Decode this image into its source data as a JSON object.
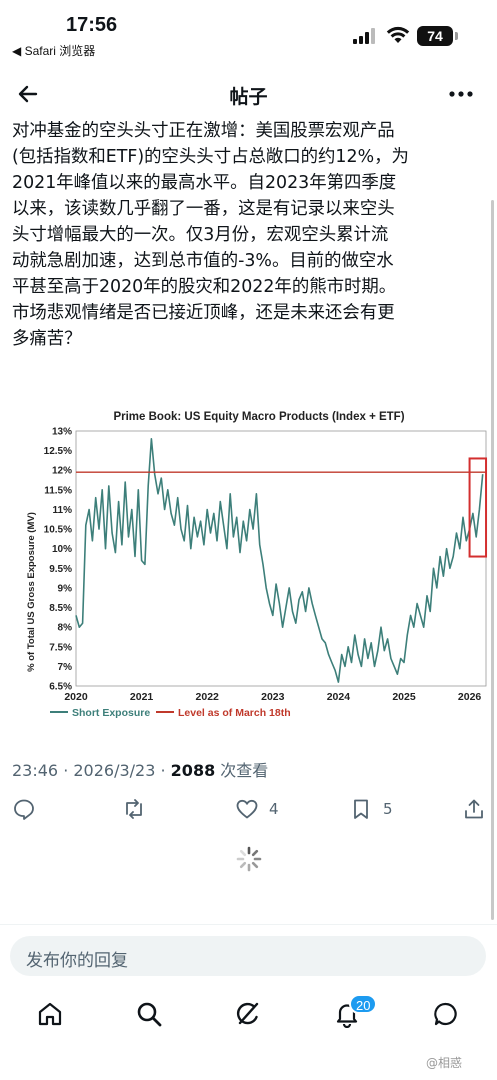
{
  "status_bar": {
    "time": "17:56",
    "back_app": "◀ Safari 浏览器",
    "battery": "74"
  },
  "header": {
    "title": "帖子",
    "back_icon": "arrow-left-icon",
    "more_icon": "more-icon"
  },
  "post": {
    "text": "对冲基金的空头头寸正在激增：美国股票宏观产品\n(包括指数和ETF)的空头头寸占总敞口的约12%，为\n2021年峰值以来的最高水平。自2023年第四季度\n以来，该读数几乎翻了一番，这是有记录以来空头\n头寸增幅最大的一次。仅3月份，宏观空头累计流\n动就急剧加速，达到总市值的-3%。目前的做空水\n平甚至高于2020年的股灾和2022年的熊市时期。\n市场悲观情绪是否已接近顶峰，还是未来还会有更\n多痛苦？",
    "time": "23:46 · 2026/3/23 · ",
    "views": "2088",
    "views_suffix": " 次查看"
  },
  "chart_data": {
    "type": "line",
    "title": "Prime Book: US Equity Macro Products (Index + ETF)",
    "ylabel": "% of Total US Gross Exposure (MV)",
    "xlabel": "",
    "xlim": [
      2020,
      2026.25
    ],
    "ylim": [
      6.5,
      13
    ],
    "x_ticks": [
      "2020",
      "2021",
      "2022",
      "2023",
      "2024",
      "2025",
      "2026"
    ],
    "y_ticks": [
      "6.5%",
      "7%",
      "7.5%",
      "8%",
      "8.5%",
      "9%",
      "9.5%",
      "10%",
      "10.5%",
      "11%",
      "11.5%",
      "12%",
      "12.5%",
      "13%"
    ],
    "grid": false,
    "legend_position": "bottom-left",
    "reference_line": {
      "name": "Level as of March 18th",
      "value": 11.95,
      "color": "#c0392b"
    },
    "series": [
      {
        "name": "Short Exposure",
        "color": "#3d7f7a",
        "x": [
          2020.0,
          2020.05,
          2020.1,
          2020.15,
          2020.2,
          2020.25,
          2020.3,
          2020.35,
          2020.4,
          2020.45,
          2020.5,
          2020.55,
          2020.6,
          2020.65,
          2020.7,
          2020.75,
          2020.8,
          2020.85,
          2020.9,
          2020.95,
          2021.0,
          2021.05,
          2021.1,
          2021.15,
          2021.2,
          2021.25,
          2021.3,
          2021.35,
          2021.4,
          2021.45,
          2021.5,
          2021.55,
          2021.6,
          2021.65,
          2021.7,
          2021.75,
          2021.8,
          2021.85,
          2021.9,
          2021.95,
          2022.0,
          2022.05,
          2022.1,
          2022.15,
          2022.2,
          2022.25,
          2022.3,
          2022.35,
          2022.4,
          2022.45,
          2022.5,
          2022.55,
          2022.6,
          2022.65,
          2022.7,
          2022.75,
          2022.8,
          2022.85,
          2022.9,
          2022.95,
          2023.0,
          2023.05,
          2023.1,
          2023.15,
          2023.2,
          2023.25,
          2023.3,
          2023.35,
          2023.4,
          2023.45,
          2023.5,
          2023.55,
          2023.6,
          2023.65,
          2023.7,
          2023.75,
          2023.8,
          2023.85,
          2023.9,
          2023.95,
          2024.0,
          2024.05,
          2024.1,
          2024.15,
          2024.2,
          2024.25,
          2024.3,
          2024.35,
          2024.4,
          2024.45,
          2024.5,
          2024.55,
          2024.6,
          2024.65,
          2024.7,
          2024.75,
          2024.8,
          2024.85,
          2024.9,
          2024.95,
          2025.0,
          2025.05,
          2025.1,
          2025.15,
          2025.2,
          2025.25,
          2025.3,
          2025.35,
          2025.4,
          2025.45,
          2025.5,
          2025.55,
          2025.6,
          2025.65,
          2025.7,
          2025.75,
          2025.8,
          2025.85,
          2025.9,
          2025.95,
          2026.0,
          2026.05,
          2026.1,
          2026.15,
          2026.2
        ],
        "values": [
          8.3,
          8.0,
          8.1,
          10.6,
          11.0,
          10.2,
          11.3,
          10.5,
          11.5,
          10.0,
          11.6,
          10.4,
          9.9,
          11.2,
          10.1,
          11.7,
          10.3,
          11.0,
          9.8,
          11.5,
          9.7,
          9.6,
          11.6,
          12.8,
          11.9,
          11.4,
          11.8,
          11.0,
          11.5,
          10.9,
          10.6,
          11.3,
          10.5,
          10.2,
          11.1,
          10.0,
          10.8,
          10.3,
          10.7,
          10.1,
          11.0,
          10.4,
          10.9,
          10.2,
          11.2,
          10.6,
          10.0,
          11.4,
          10.3,
          10.8,
          9.9,
          10.7,
          10.2,
          11.0,
          10.5,
          11.4,
          10.1,
          9.6,
          9.0,
          8.6,
          8.3,
          9.1,
          8.6,
          8.0,
          8.5,
          9.0,
          8.4,
          8.1,
          8.7,
          8.9,
          8.4,
          9.0,
          8.6,
          8.3,
          8.0,
          7.7,
          7.6,
          7.3,
          7.1,
          6.9,
          6.6,
          7.3,
          7.0,
          7.5,
          7.1,
          7.8,
          7.3,
          7.0,
          7.7,
          7.2,
          7.6,
          7.0,
          7.4,
          8.0,
          7.4,
          7.7,
          7.2,
          7.0,
          6.8,
          7.2,
          7.1,
          7.8,
          8.3,
          8.0,
          8.6,
          8.3,
          8.0,
          8.8,
          8.4,
          9.5,
          9.0,
          9.8,
          9.3,
          10.0,
          9.5,
          9.8,
          10.4,
          10.0,
          10.8,
          10.2,
          10.5,
          10.9,
          10.3,
          11.0,
          11.9
        ]
      }
    ]
  },
  "actions": {
    "reply_icon": "reply-icon",
    "repost_icon": "repost-icon",
    "like_icon": "heart-icon",
    "likes": "4",
    "bookmark_icon": "bookmark-icon",
    "bookmarks": "5",
    "share_icon": "share-icon"
  },
  "reply": {
    "placeholder": "发布你的回复"
  },
  "tabbar": {
    "home_icon": "home-icon",
    "search_icon": "search-icon",
    "grok_icon": "grok-icon",
    "notifications_icon": "bell-icon",
    "notifications_badge": "20",
    "messages_icon": "chat-icon"
  },
  "watermark": "@相惑",
  "colors": {
    "accent": "#1d9bf0",
    "series": "#3d7f7a",
    "reference": "#c0392b"
  }
}
